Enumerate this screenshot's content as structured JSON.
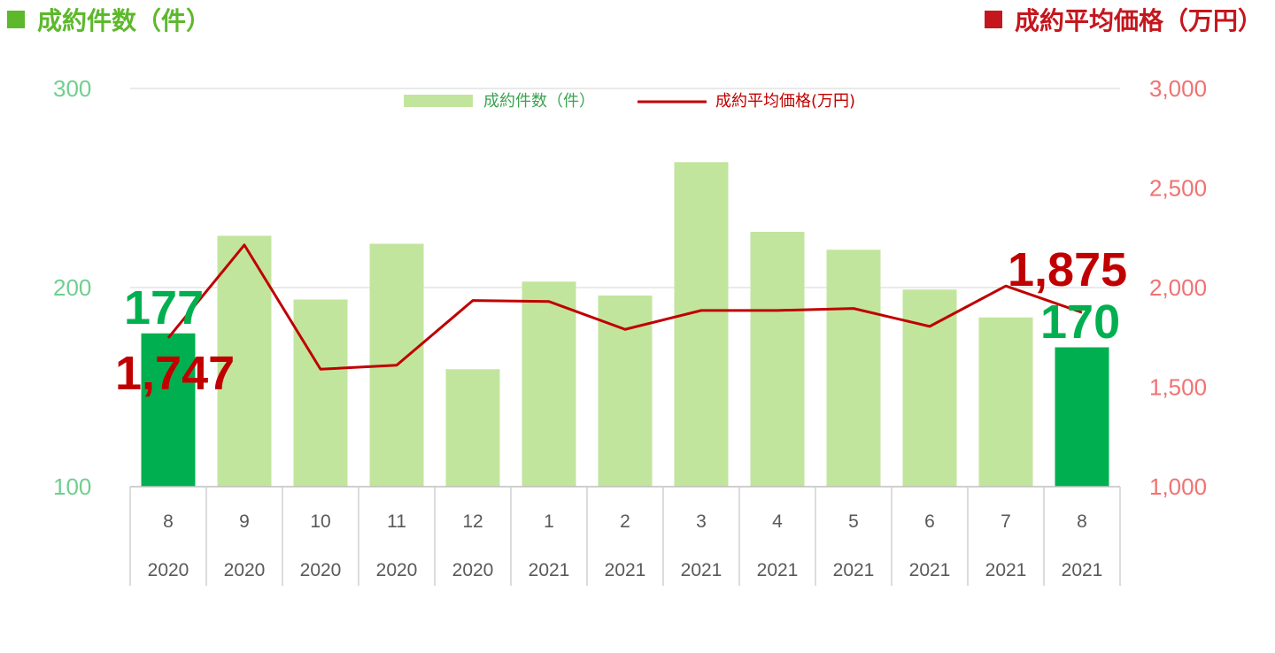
{
  "headers": {
    "left": {
      "label": "成約件数（件）",
      "color": "#5db82c"
    },
    "right": {
      "label": "成約平均価格（万円）",
      "color": "#c5161d"
    }
  },
  "chart_data": {
    "type": "bar",
    "categories": [
      {
        "month": "8",
        "year": "2020"
      },
      {
        "month": "9",
        "year": "2020"
      },
      {
        "month": "10",
        "year": "2020"
      },
      {
        "month": "11",
        "year": "2020"
      },
      {
        "month": "12",
        "year": "2020"
      },
      {
        "month": "1",
        "year": "2021"
      },
      {
        "month": "2",
        "year": "2021"
      },
      {
        "month": "3",
        "year": "2021"
      },
      {
        "month": "4",
        "year": "2021"
      },
      {
        "month": "5",
        "year": "2021"
      },
      {
        "month": "6",
        "year": "2021"
      },
      {
        "month": "7",
        "year": "2021"
      },
      {
        "month": "8",
        "year": "2021"
      }
    ],
    "series": [
      {
        "name": "成約件数（件）",
        "type": "bar",
        "axis": "left",
        "values": [
          177,
          226,
          194,
          222,
          159,
          203,
          196,
          263,
          228,
          219,
          199,
          185,
          170
        ],
        "color": "#c2e59d",
        "highlight_color": "#00b050",
        "highlight_indices": [
          0,
          12
        ]
      },
      {
        "name": "成約平均価格(万円)",
        "type": "line",
        "axis": "right",
        "values": [
          1747,
          2214,
          1590,
          1610,
          1935,
          1930,
          1790,
          1885,
          1885,
          1895,
          1805,
          2008,
          1875
        ],
        "color": "#c00000"
      }
    ],
    "y_left": {
      "range": [
        100,
        300
      ],
      "ticks": [
        "100",
        "200",
        "300"
      ],
      "color": "#6fcf8f"
    },
    "y_right": {
      "range": [
        1000,
        3000
      ],
      "ticks": [
        "1,000",
        "1,500",
        "2,000",
        "2,500",
        "3,000"
      ],
      "color": "#f07272"
    },
    "grid": true,
    "legend_position": "top-center",
    "annotations": [
      {
        "text": "177",
        "color": "#00b050"
      },
      {
        "text": "1,747",
        "color": "#c00000"
      },
      {
        "text": "1,875",
        "color": "#c00000"
      },
      {
        "text": "170",
        "color": "#00b050"
      }
    ]
  }
}
